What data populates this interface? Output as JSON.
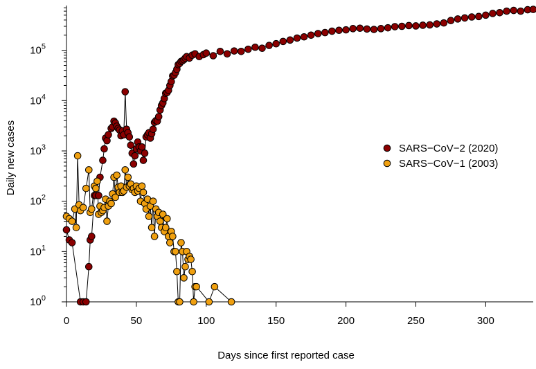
{
  "chart_data": {
    "type": "scatter",
    "title": "",
    "xlabel": "Days since first reported case",
    "ylabel": "Daily new cases",
    "xlim": [
      0,
      334
    ],
    "ylim": [
      1,
      1000000
    ],
    "y_scale": "log",
    "x_ticks": [
      0,
      50,
      100,
      150,
      200,
      250,
      300
    ],
    "y_ticks": [
      {
        "value": 1,
        "base": "10",
        "exp": "0"
      },
      {
        "value": 10,
        "base": "10",
        "exp": "1"
      },
      {
        "value": 100,
        "base": "10",
        "exp": "2"
      },
      {
        "value": 1000,
        "base": "10",
        "exp": "3"
      },
      {
        "value": 10000,
        "base": "10",
        "exp": "4"
      },
      {
        "value": 100000,
        "base": "10",
        "exp": "5"
      }
    ],
    "grid": false,
    "legend_position": "right",
    "series": [
      {
        "name": "SARS−CoV−2 (2020)",
        "color": "#8b0000",
        "x": [
          0,
          2,
          4,
          10,
          12,
          14,
          16,
          17,
          18,
          20,
          21,
          23,
          24,
          26,
          27,
          28,
          29,
          30,
          32,
          33,
          34,
          35,
          36,
          37,
          38,
          39,
          40,
          41,
          42,
          43,
          44,
          45,
          46,
          47,
          48,
          49,
          50,
          51,
          52,
          53,
          54,
          55,
          56,
          57,
          58,
          59,
          60,
          61,
          62,
          63,
          64,
          65,
          66,
          67,
          68,
          69,
          70,
          71,
          72,
          73,
          74,
          75,
          76,
          77,
          78,
          79,
          80,
          81,
          82,
          83,
          84,
          85,
          86,
          88,
          90,
          92,
          95,
          98,
          100,
          105,
          110,
          115,
          120,
          125,
          130,
          135,
          140,
          145,
          150,
          155,
          160,
          165,
          170,
          175,
          180,
          185,
          190,
          195,
          200,
          205,
          210,
          215,
          220,
          225,
          230,
          235,
          240,
          245,
          250,
          255,
          260,
          265,
          270,
          275,
          280,
          285,
          290,
          295,
          300,
          305,
          310,
          315,
          320,
          325,
          330,
          334
        ],
        "y": [
          27,
          17,
          15,
          1,
          1,
          1,
          5,
          17,
          20,
          130,
          130,
          130,
          300,
          650,
          1100,
          1800,
          1600,
          2100,
          2800,
          3000,
          3900,
          3600,
          3100,
          2800,
          2600,
          2000,
          2500,
          2100,
          15000,
          2700,
          2300,
          1900,
          1300,
          900,
          550,
          800,
          1100,
          1500,
          1200,
          1000,
          1200,
          650,
          900,
          1900,
          2100,
          2300,
          1800,
          2200,
          2700,
          3700,
          4000,
          3900,
          4800,
          6500,
          8000,
          9000,
          11000,
          14000,
          14500,
          16000,
          20000,
          24000,
          31000,
          32000,
          36000,
          42000,
          52000,
          55000,
          60000,
          62000,
          65000,
          70000,
          75000,
          70000,
          80000,
          85000,
          75000,
          82000,
          88000,
          78000,
          95000,
          85000,
          97000,
          95000,
          105000,
          115000,
          110000,
          125000,
          135000,
          150000,
          160000,
          175000,
          185000,
          200000,
          215000,
          225000,
          240000,
          250000,
          255000,
          270000,
          275000,
          265000,
          260000,
          270000,
          280000,
          295000,
          300000,
          310000,
          305000,
          315000,
          320000,
          335000,
          350000,
          390000,
          420000,
          440000,
          460000,
          470000,
          500000,
          540000,
          560000,
          600000,
          620000,
          600000,
          640000,
          650000
        ]
      },
      {
        "name": "SARS−CoV−1 (2003)",
        "color": "#f0a010",
        "x": [
          0,
          2,
          4,
          6,
          7,
          8,
          9,
          10,
          12,
          14,
          16,
          17,
          18,
          20,
          21,
          22,
          23,
          24,
          25,
          26,
          27,
          28,
          29,
          30,
          31,
          32,
          33,
          34,
          35,
          36,
          37,
          38,
          39,
          40,
          41,
          42,
          43,
          44,
          45,
          46,
          47,
          48,
          49,
          50,
          51,
          52,
          53,
          54,
          55,
          56,
          57,
          58,
          59,
          60,
          61,
          62,
          63,
          64,
          65,
          66,
          67,
          68,
          69,
          70,
          71,
          72,
          73,
          74,
          75,
          76,
          77,
          78,
          79,
          80,
          81,
          82,
          83,
          84,
          85,
          86,
          87,
          88,
          89,
          90,
          91,
          92,
          93,
          102,
          106,
          118
        ],
        "y": [
          50,
          45,
          40,
          70,
          30,
          800,
          85,
          65,
          75,
          180,
          420,
          60,
          70,
          200,
          180,
          250,
          55,
          80,
          60,
          65,
          75,
          110,
          40,
          80,
          100,
          90,
          140,
          300,
          120,
          330,
          190,
          150,
          200,
          150,
          160,
          420,
          190,
          300,
          200,
          220,
          170,
          180,
          150,
          200,
          160,
          180,
          100,
          200,
          150,
          90,
          70,
          110,
          50,
          80,
          30,
          100,
          20,
          70,
          50,
          60,
          40,
          30,
          55,
          25,
          30,
          45,
          20,
          15,
          25,
          20,
          10,
          10,
          4,
          1,
          1,
          15,
          10,
          3,
          5,
          10,
          7,
          8,
          7,
          4,
          1,
          2,
          2,
          1,
          2,
          1
        ]
      }
    ]
  }
}
